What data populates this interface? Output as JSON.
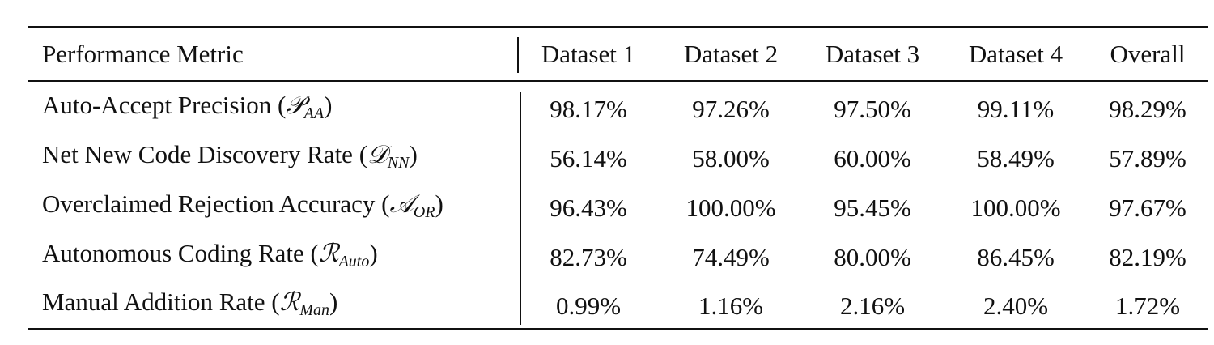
{
  "table": {
    "header": [
      "Performance Metric",
      "Dataset 1",
      "Dataset 2",
      "Dataset 3",
      "Dataset 4",
      "Overall"
    ],
    "rows": [
      {
        "metric": {
          "text": "Auto-Accept Precision (",
          "symbol": "𝒫",
          "subscript": "AA",
          "close": ")"
        },
        "cells": [
          "98.17%",
          "97.26%",
          "97.50%",
          "99.11%",
          "98.29%"
        ]
      },
      {
        "metric": {
          "text": "Net New Code Discovery Rate (",
          "symbol": "𝒟",
          "subscript": "NN",
          "close": ")"
        },
        "cells": [
          "56.14%",
          "58.00%",
          "60.00%",
          "58.49%",
          "57.89%"
        ]
      },
      {
        "metric": {
          "text": "Overclaimed Rejection Accuracy (",
          "symbol": "𝒜",
          "subscript": "OR",
          "close": ")"
        },
        "cells": [
          "96.43%",
          "100.00%",
          "95.45%",
          "100.00%",
          "97.67%"
        ]
      },
      {
        "metric": {
          "text": "Autonomous Coding Rate (",
          "symbol": "ℛ",
          "subscript": "Auto",
          "close": ")"
        },
        "cells": [
          "82.73%",
          "74.49%",
          "80.00%",
          "86.45%",
          "82.19%"
        ]
      },
      {
        "metric": {
          "text": "Manual Addition Rate (",
          "symbol": "ℛ",
          "subscript": "Man",
          "close": ")"
        },
        "cells": [
          "0.99%",
          "1.16%",
          "2.16%",
          "2.40%",
          "1.72%"
        ]
      }
    ]
  }
}
